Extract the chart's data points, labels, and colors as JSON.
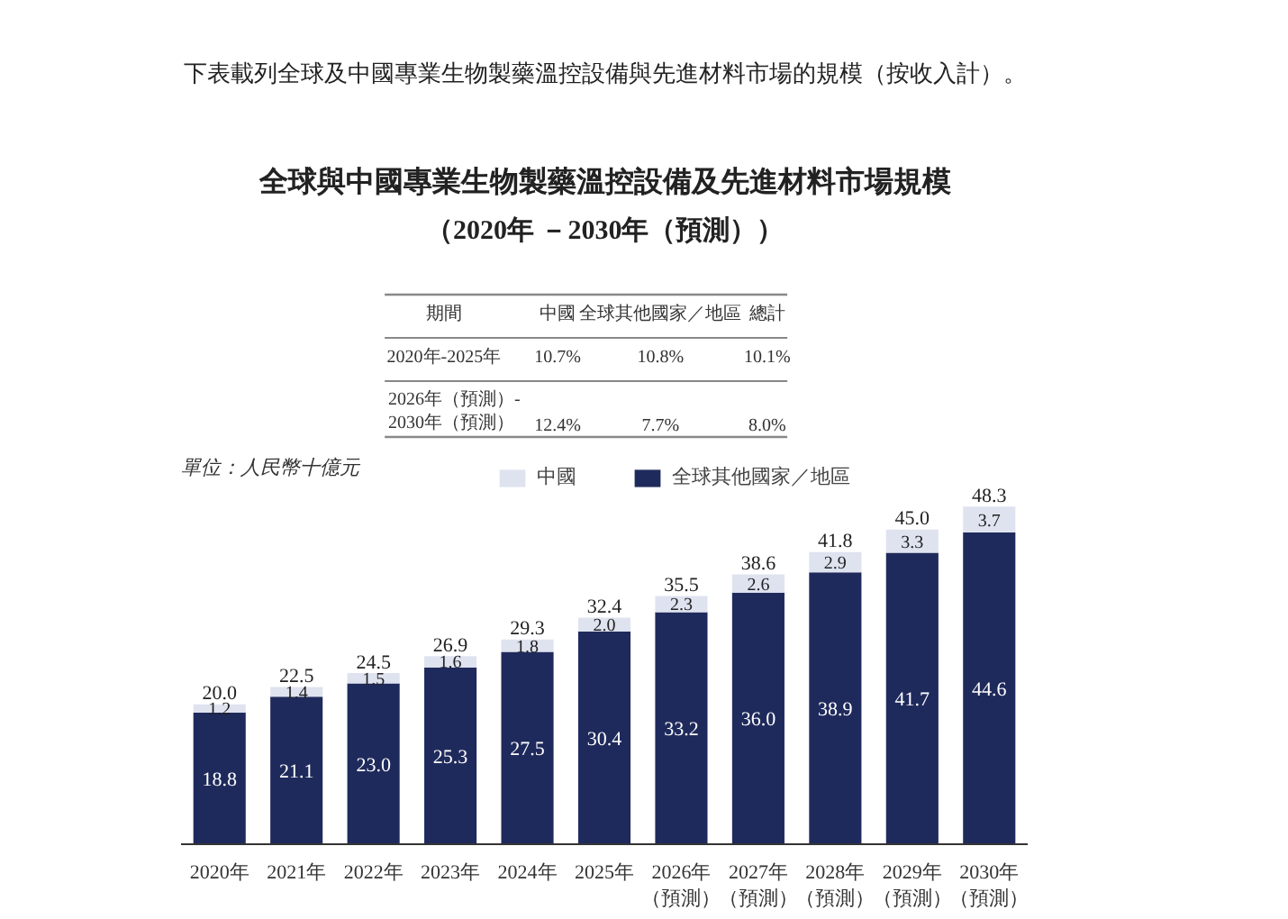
{
  "chart_data": {
    "type": "bar",
    "title": "全球與中國專業生物製藥溫控設備及先進材料市場規模",
    "subtitle": "（2020年 －2030年（預測））",
    "categories": [
      "2020年",
      "2021年",
      "2022年",
      "2023年",
      "2024年",
      "2025年",
      "2026年（預測）",
      "2027年（預測）",
      "2028年（預測）",
      "2029年（預測）",
      "2030年（預測）"
    ],
    "stacked": true,
    "data_labels": true,
    "legend": "top",
    "series": [
      {
        "name": "全球其他國家／地區",
        "color": "#1f2a5c",
        "values": [
          18.8,
          21.1,
          23.0,
          25.3,
          27.5,
          30.4,
          33.2,
          36.0,
          38.9,
          41.7,
          44.6
        ],
        "value_labels": [
          "18.8",
          "21.1",
          "23.0",
          "25.3",
          "27.5",
          "30.4",
          "33.2",
          "36.0",
          "38.9",
          "41.7",
          "44.6"
        ]
      },
      {
        "name": "中國",
        "color": "#dfe3f0",
        "values": [
          1.2,
          1.4,
          1.5,
          1.6,
          1.8,
          2.0,
          2.3,
          2.6,
          2.9,
          3.3,
          3.7
        ],
        "value_labels": [
          "1.2",
          "1.4",
          "1.5",
          "1.6",
          "1.8",
          "2.0",
          "2.3",
          "2.6",
          "2.9",
          "3.3",
          "3.7"
        ]
      }
    ],
    "totals": [
      "20.0",
      "22.5",
      "24.5",
      "26.9",
      "29.3",
      "32.4",
      "35.5",
      "38.6",
      "41.8",
      "45.0",
      "48.3"
    ],
    "annotations": [
      "下表載列全球及中國專業生物製藥溫控設備與先進材料市場的規模（按收入計）。",
      "單位：人民幣十億元",
      "期間",
      "中國",
      "全球其他國家／地區",
      "總計",
      "2020年-2025年",
      "10.7%",
      "10.8%",
      "10.1%",
      "2026年（預測）-2030年（預測）",
      "12.4%",
      "7.7%",
      "8.0%"
    ]
  }
}
